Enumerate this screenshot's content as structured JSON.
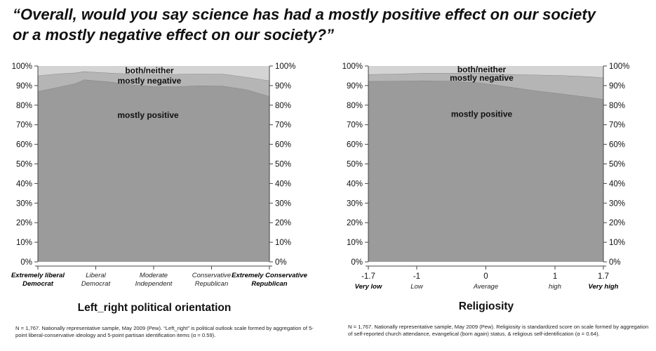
{
  "title": {
    "line1": "“Overall, would you say science has had a mostly positive effect on our society",
    "line2": "or a mostly negative effect on our society?”"
  },
  "colors": {
    "positive": "#9b9b9b",
    "negative": "#b5b5b5",
    "neither": "#d4d4d4",
    "boundary": "#7d7d7d"
  },
  "chart_data": [
    {
      "type": "area",
      "xlabel": "Left_right political orientation",
      "ylabel": "",
      "ylim": [
        0,
        100
      ],
      "yticks": [
        "0%",
        "10%",
        "20%",
        "30%",
        "40%",
        "50%",
        "60%",
        "70%",
        "80%",
        "90%",
        "100%"
      ],
      "xlim": [
        0,
        1
      ],
      "xticks": [
        {
          "x": 0.0,
          "lines": [
            "Extremely liberal",
            "Democrat"
          ],
          "style": "bold-italic"
        },
        {
          "x": 0.25,
          "lines": [
            "Liberal",
            "Democrat"
          ],
          "style": "italic"
        },
        {
          "x": 0.5,
          "lines": [
            "Moderate",
            "Independent"
          ],
          "style": "italic"
        },
        {
          "x": 0.75,
          "lines": [
            "Conservative",
            "Republican"
          ],
          "style": "italic"
        },
        {
          "x": 1.0,
          "lines": [
            "Extremely Conservative",
            "Republican"
          ],
          "style": "bold-italic"
        }
      ],
      "x": [
        0,
        0.08,
        0.16,
        0.2,
        0.3,
        0.4,
        0.5,
        0.6,
        0.7,
        0.8,
        0.9,
        1.0
      ],
      "series": [
        {
          "name": "mostly positive",
          "values": [
            87,
            89,
            91,
            93,
            92,
            90.5,
            89.5,
            89.5,
            90,
            89.8,
            88,
            84.5
          ]
        },
        {
          "name": "mostly negative",
          "values": [
            8,
            7,
            5.5,
            4.2,
            4.5,
            5.5,
            6.2,
            6.3,
            6,
            6.1,
            6.3,
            8
          ]
        },
        {
          "name": "both/neither",
          "values": [
            5,
            4,
            3.5,
            2.8,
            3.5,
            4,
            4.3,
            4.2,
            4,
            4.1,
            5.7,
            7.5
          ]
        }
      ],
      "labels": [
        "both/neither",
        "mostly negative",
        "mostly positive"
      ],
      "grid": false,
      "note": "N = 1,767. Nationally representative sample,  May 2009 (Pew). “Left_right” is political outlook scale formed by aggregation of 5-point liberal-conservative ideology and 5-point partisan identification items (α = 0.59)."
    },
    {
      "type": "area",
      "xlabel": "Religiosity",
      "ylabel": "",
      "ylim": [
        0,
        100
      ],
      "yticks": [
        "0%",
        "10%",
        "20%",
        "30%",
        "40%",
        "50%",
        "60%",
        "70%",
        "80%",
        "90%",
        "100%"
      ],
      "xlim": [
        -1.7,
        1.7
      ],
      "xticks": [
        {
          "x": -1.7,
          "num": "-1.7",
          "sub": "Very low",
          "style": "bold-italic"
        },
        {
          "x": -1,
          "num": "-1",
          "sub": "Low",
          "style": "italic"
        },
        {
          "x": 0,
          "num": "0",
          "sub": "Average",
          "style": "italic"
        },
        {
          "x": 1,
          "num": "1",
          "sub": "high",
          "style": "italic"
        },
        {
          "x": 1.7,
          "num": "1.7",
          "sub": "Very high",
          "style": "bold-italic"
        }
      ],
      "x": [
        -1.7,
        -1.3,
        -0.9,
        -0.5,
        -0.1,
        0.3,
        0.7,
        1.1,
        1.5,
        1.7
      ],
      "series": [
        {
          "name": "mostly positive",
          "values": [
            92.2,
            92.3,
            92.5,
            92.3,
            91.5,
            89.5,
            87.5,
            85.8,
            84,
            83
          ]
        },
        {
          "name": "mostly negative",
          "values": [
            3.5,
            3.7,
            3.8,
            4.0,
            4.8,
            6.3,
            8.0,
            9.4,
            10.5,
            11
          ]
        },
        {
          "name": "both/neither",
          "values": [
            4.3,
            4.0,
            3.7,
            3.7,
            3.7,
            4.2,
            4.5,
            4.8,
            5.5,
            6
          ]
        }
      ],
      "labels": [
        "both/neither",
        "mostly negative",
        "mostly positive"
      ],
      "grid": false,
      "note": "N = 1,767. Nationally representative sample,  May 2009 (Pew).  Religiosity is standardized score on scale formed by aggregation of self-reported church attendance,  evangelical (born again) status,  & religious self-identification (α = 0.64)."
    }
  ]
}
